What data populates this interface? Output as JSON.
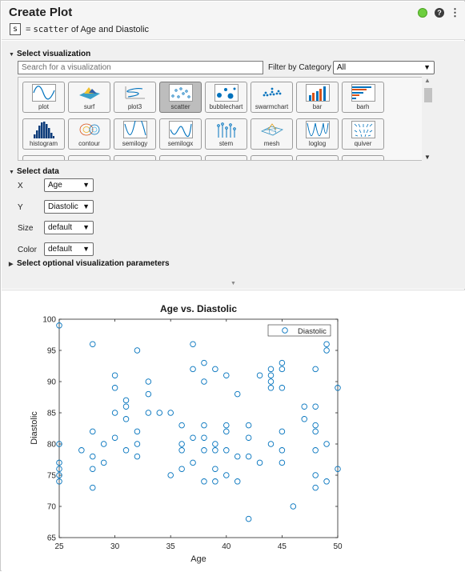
{
  "header": {
    "title": "Create Plot",
    "help_glyph": "?",
    "more_glyph": "⋮",
    "var_name": "s",
    "equals": "=",
    "function_name": "scatter",
    "description": "of Age and Diastolic",
    "status_color": "#6dce3e"
  },
  "select_visualization": {
    "heading": "Select visualization",
    "search_placeholder": "Search for a visualization",
    "filter_label": "Filter by Category",
    "filter_value": "All",
    "selected": "scatter",
    "tiles_row1": [
      "plot",
      "surf",
      "plot3",
      "scatter",
      "bubblechart",
      "swarmchart",
      "bar",
      "barh"
    ],
    "tiles_row2": [
      "histogram",
      "contour",
      "semilogy",
      "semilogx",
      "stem",
      "mesh",
      "loglog",
      "quiver"
    ]
  },
  "select_data": {
    "heading": "Select data",
    "x_label": "X",
    "x_value": "Age",
    "y_label": "Y",
    "y_value": "Diastolic",
    "size_label": "Size",
    "size_value": "default",
    "color_label": "Color",
    "color_value": "default"
  },
  "optional": {
    "heading": "Select optional visualization parameters"
  },
  "chart_data": {
    "type": "scatter",
    "title": "Age vs. Diastolic",
    "xlabel": "Age",
    "ylabel": "Diastolic",
    "xlim": [
      25,
      50
    ],
    "ylim": [
      65,
      100
    ],
    "xticks": [
      25,
      30,
      35,
      40,
      45,
      50
    ],
    "yticks": [
      65,
      70,
      75,
      80,
      85,
      90,
      95,
      100
    ],
    "legend": "top-right",
    "grid": false,
    "marker_color": "#0072bd",
    "series": [
      {
        "name": "Diastolic",
        "points": [
          [
            25,
            99
          ],
          [
            25,
            80
          ],
          [
            25,
            77
          ],
          [
            25,
            76
          ],
          [
            25,
            75
          ],
          [
            25,
            74
          ],
          [
            27,
            79
          ],
          [
            28,
            96
          ],
          [
            28,
            82
          ],
          [
            28,
            78
          ],
          [
            28,
            76
          ],
          [
            28,
            73
          ],
          [
            29,
            77
          ],
          [
            29,
            80
          ],
          [
            30,
            91
          ],
          [
            30,
            89
          ],
          [
            30,
            85
          ],
          [
            30,
            81
          ],
          [
            31,
            87
          ],
          [
            31,
            86
          ],
          [
            31,
            84
          ],
          [
            31,
            79
          ],
          [
            32,
            95
          ],
          [
            32,
            82
          ],
          [
            32,
            80
          ],
          [
            32,
            78
          ],
          [
            33,
            90
          ],
          [
            33,
            88
          ],
          [
            33,
            85
          ],
          [
            34,
            85
          ],
          [
            35,
            85
          ],
          [
            35,
            75
          ],
          [
            36,
            83
          ],
          [
            36,
            80
          ],
          [
            36,
            79
          ],
          [
            36,
            76
          ],
          [
            37,
            96
          ],
          [
            37,
            92
          ],
          [
            37,
            81
          ],
          [
            37,
            77
          ],
          [
            38,
            93
          ],
          [
            38,
            90
          ],
          [
            38,
            83
          ],
          [
            38,
            81
          ],
          [
            38,
            79
          ],
          [
            38,
            74
          ],
          [
            39,
            92
          ],
          [
            39,
            80
          ],
          [
            39,
            79
          ],
          [
            39,
            76
          ],
          [
            39,
            74
          ],
          [
            40,
            91
          ],
          [
            40,
            83
          ],
          [
            40,
            82
          ],
          [
            40,
            79
          ],
          [
            40,
            75
          ],
          [
            41,
            88
          ],
          [
            41,
            78
          ],
          [
            41,
            74
          ],
          [
            42,
            83
          ],
          [
            42,
            81
          ],
          [
            42,
            78
          ],
          [
            42,
            68
          ],
          [
            43,
            91
          ],
          [
            43,
            77
          ],
          [
            44,
            92
          ],
          [
            44,
            91
          ],
          [
            44,
            90
          ],
          [
            44,
            89
          ],
          [
            44,
            80
          ],
          [
            45,
            93
          ],
          [
            45,
            92
          ],
          [
            45,
            89
          ],
          [
            45,
            82
          ],
          [
            45,
            79
          ],
          [
            45,
            77
          ],
          [
            46,
            70
          ],
          [
            47,
            86
          ],
          [
            47,
            84
          ],
          [
            48,
            92
          ],
          [
            48,
            86
          ],
          [
            48,
            83
          ],
          [
            48,
            82
          ],
          [
            48,
            79
          ],
          [
            48,
            75
          ],
          [
            48,
            73
          ],
          [
            49,
            96
          ],
          [
            49,
            95
          ],
          [
            49,
            80
          ],
          [
            49,
            74
          ],
          [
            50,
            89
          ],
          [
            50,
            76
          ]
        ]
      }
    ]
  }
}
